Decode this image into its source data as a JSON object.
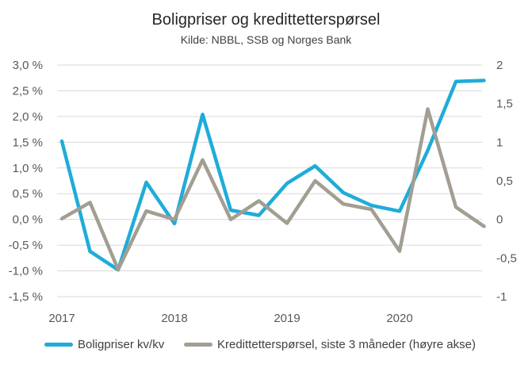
{
  "chart_data": {
    "type": "line",
    "title": "Boligpriser  og kredittetterspørsel",
    "subtitle": "Kilde: NBBL, SSB og Norges Bank",
    "x_ticks": [
      "2017",
      "2018",
      "2019",
      "2020"
    ],
    "left_axis": {
      "ylim": [
        -1.5,
        3.0
      ],
      "ticks": [
        -1.5,
        -1.0,
        -0.5,
        0.0,
        0.5,
        1.0,
        1.5,
        2.0,
        2.5,
        3.0
      ],
      "tick_labels": [
        "-1,5 %",
        "-1,0 %",
        "-0,5 %",
        "0,0 %",
        "0,5 %",
        "1,0 %",
        "1,5 %",
        "2,0 %",
        "2,5 %",
        "3,0 %"
      ]
    },
    "right_axis": {
      "ylim": [
        -1,
        2
      ],
      "ticks": [
        -1,
        -0.5,
        0,
        0.5,
        1,
        1.5,
        2
      ],
      "tick_labels": [
        "-1",
        "-0,5",
        "0",
        "0,5",
        "1",
        "1,5",
        "2"
      ]
    },
    "x": [
      "2017Q1",
      "2017Q2",
      "2017Q3",
      "2017Q4",
      "2018Q1",
      "2018Q2",
      "2018Q3",
      "2018Q4",
      "2019Q1",
      "2019Q2",
      "2019Q3",
      "2019Q4",
      "2020Q1",
      "2020Q2",
      "2020Q3",
      "2020Q4"
    ],
    "series": [
      {
        "name": "Boligpriser kv/kv",
        "axis": "left",
        "color": "#1FACD9",
        "values": [
          1.52,
          -0.62,
          -0.98,
          0.72,
          -0.08,
          2.04,
          0.18,
          0.08,
          0.7,
          1.04,
          0.52,
          0.27,
          0.16,
          1.34,
          2.68,
          2.7
        ]
      },
      {
        "name": "Kredittetterspørsel, siste 3 måneder (høyre akse)",
        "axis": "right",
        "color": "#A39E92",
        "values": [
          0.01,
          0.22,
          -0.65,
          0.11,
          0.0,
          0.77,
          0.0,
          0.24,
          -0.05,
          0.5,
          0.2,
          0.13,
          -0.41,
          1.43,
          0.16,
          -0.09
        ]
      }
    ],
    "grid": true,
    "legend_position": "bottom"
  }
}
